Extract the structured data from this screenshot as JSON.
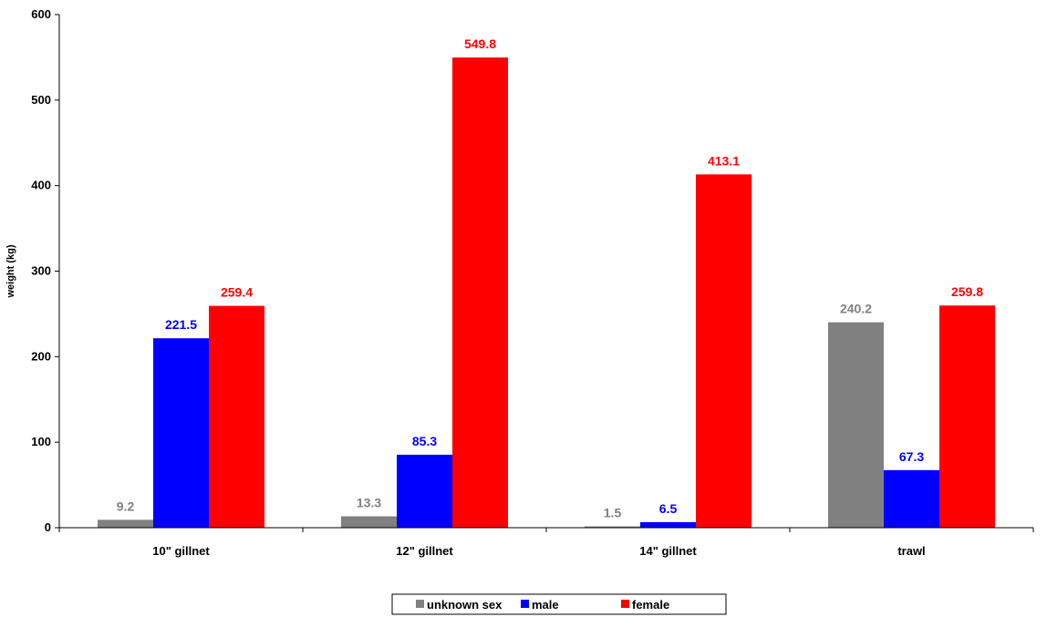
{
  "chart_data": {
    "type": "bar",
    "title": "",
    "xlabel": "",
    "ylabel": "weight (kg)",
    "ylim": [
      0,
      600
    ],
    "yticks": [
      0,
      100,
      200,
      300,
      400,
      500,
      600
    ],
    "grid": false,
    "legend_position": "bottom",
    "categories": [
      "10\" gillnet",
      "12\" gillnet",
      "14\" gillnet",
      "trawl"
    ],
    "series": [
      {
        "name": "unknown sex",
        "color": "#808080",
        "values": [
          9.2,
          13.3,
          1.5,
          240.2
        ],
        "labels": [
          "9.2",
          "13.3",
          "1.5",
          "240.2"
        ]
      },
      {
        "name": "male",
        "color": "#0000ff",
        "values": [
          221.5,
          85.3,
          6.5,
          67.3
        ],
        "labels": [
          "221.5",
          "85.3",
          "6.5",
          "67.3"
        ]
      },
      {
        "name": "female",
        "color": "#ff0000",
        "values": [
          259.4,
          549.8,
          413.1,
          259.8
        ],
        "labels": [
          "259.4",
          "549.8",
          "413.1",
          "259.8"
        ]
      }
    ]
  }
}
